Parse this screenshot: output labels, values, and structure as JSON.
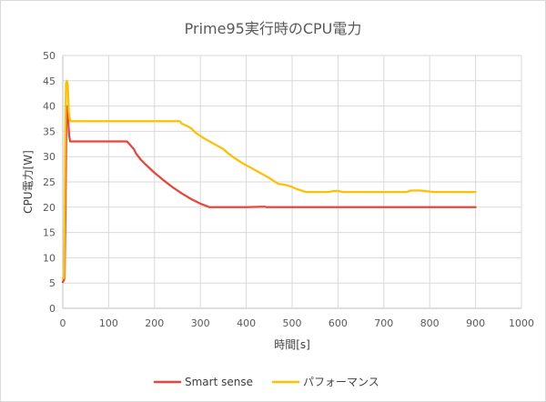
{
  "chart_data": {
    "type": "line",
    "title": "Prime95実行時のCPU電力",
    "xlabel": "時間[s]",
    "ylabel": "CPU電力[W]",
    "xlim": [
      0,
      1000
    ],
    "ylim": [
      0,
      50
    ],
    "x_ticks": [
      "0",
      "100",
      "200",
      "300",
      "400",
      "500",
      "600",
      "700",
      "800",
      "900",
      "1000"
    ],
    "y_ticks": [
      "0",
      "5",
      "10",
      "15",
      "20",
      "25",
      "30",
      "35",
      "40",
      "45",
      "50"
    ],
    "legend_position": "bottom",
    "grid": true,
    "series": [
      {
        "name": "Smart sense",
        "color": "#e8453c",
        "points": [
          [
            0,
            5.2
          ],
          [
            2,
            5.5
          ],
          [
            4,
            6
          ],
          [
            6,
            20
          ],
          [
            8,
            38
          ],
          [
            10,
            40
          ],
          [
            12,
            37
          ],
          [
            14,
            34
          ],
          [
            16,
            33
          ],
          [
            30,
            33
          ],
          [
            80,
            33
          ],
          [
            140,
            33
          ],
          [
            145,
            32.5
          ],
          [
            150,
            32
          ],
          [
            155,
            31.5
          ],
          [
            160,
            30.6
          ],
          [
            170,
            29.4
          ],
          [
            180,
            28.5
          ],
          [
            200,
            26.8
          ],
          [
            220,
            25.3
          ],
          [
            240,
            23.9
          ],
          [
            260,
            22.7
          ],
          [
            280,
            21.6
          ],
          [
            300,
            20.7
          ],
          [
            320,
            20
          ],
          [
            330,
            20
          ],
          [
            400,
            20
          ],
          [
            440,
            20.1
          ],
          [
            445,
            20
          ],
          [
            500,
            20
          ],
          [
            600,
            20
          ],
          [
            700,
            20
          ],
          [
            800,
            20
          ],
          [
            900,
            20
          ]
        ]
      },
      {
        "name": "パフォーマンス",
        "color": "#ffc000",
        "points": [
          [
            0,
            6
          ],
          [
            3,
            6
          ],
          [
            5,
            30
          ],
          [
            7,
            44.5
          ],
          [
            9,
            45
          ],
          [
            11,
            44
          ],
          [
            13,
            39
          ],
          [
            15,
            37.5
          ],
          [
            17,
            37
          ],
          [
            30,
            37
          ],
          [
            100,
            37
          ],
          [
            200,
            37
          ],
          [
            255,
            37
          ],
          [
            260,
            36.5
          ],
          [
            270,
            36.1
          ],
          [
            280,
            35.6
          ],
          [
            290,
            34.7
          ],
          [
            300,
            34.1
          ],
          [
            310,
            33.5
          ],
          [
            320,
            33
          ],
          [
            330,
            32.5
          ],
          [
            340,
            32
          ],
          [
            350,
            31.5
          ],
          [
            360,
            30.7
          ],
          [
            370,
            30
          ],
          [
            380,
            29.4
          ],
          [
            390,
            28.8
          ],
          [
            400,
            28.3
          ],
          [
            410,
            27.8
          ],
          [
            420,
            27.3
          ],
          [
            430,
            26.8
          ],
          [
            440,
            26.3
          ],
          [
            450,
            25.8
          ],
          [
            460,
            25.2
          ],
          [
            470,
            24.6
          ],
          [
            480,
            24.5
          ],
          [
            490,
            24.3
          ],
          [
            500,
            24
          ],
          [
            510,
            23.6
          ],
          [
            520,
            23.3
          ],
          [
            530,
            23
          ],
          [
            540,
            23
          ],
          [
            580,
            23
          ],
          [
            590,
            23.2
          ],
          [
            600,
            23.2
          ],
          [
            610,
            23
          ],
          [
            700,
            23
          ],
          [
            750,
            23
          ],
          [
            760,
            23.3
          ],
          [
            780,
            23.3
          ],
          [
            800,
            23.1
          ],
          [
            810,
            23
          ],
          [
            850,
            23
          ],
          [
            900,
            23
          ]
        ]
      }
    ]
  }
}
